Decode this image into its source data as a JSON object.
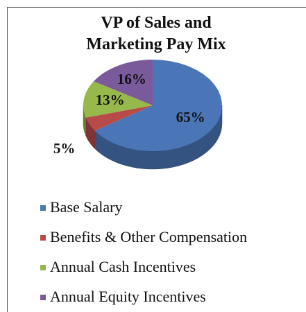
{
  "chart_data": {
    "type": "pie",
    "title": "VP of  Sales and Marketing Pay Mix",
    "categories": [
      "Base Salary",
      "Benefits & Other Compensation",
      "Annual Cash Incentives",
      "Annual Equity Incentives"
    ],
    "values": [
      65,
      5,
      13,
      16
    ],
    "value_labels": [
      "65%",
      "5%",
      "13%",
      "16%"
    ],
    "colors": [
      "#4a76b8",
      "#b84a4a",
      "#97b84a",
      "#7a5a9a"
    ],
    "legend": "bottom"
  }
}
